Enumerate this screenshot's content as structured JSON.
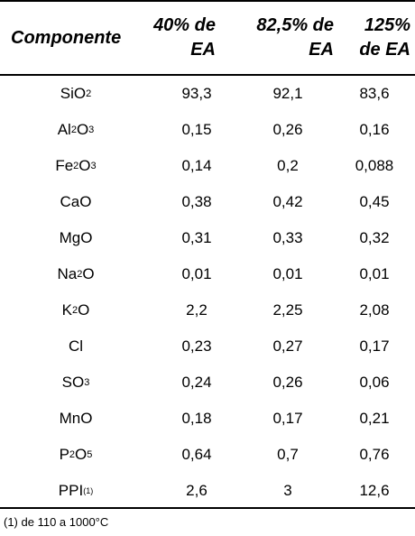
{
  "table": {
    "headers": [
      "Componente",
      "40% de\nEA",
      "82,5% de\nEA",
      "125%\nde EA"
    ],
    "rows": [
      {
        "component": [
          "Si",
          "O",
          "2"
        ],
        "values": [
          "93,3",
          "92,1",
          "83,6"
        ]
      },
      {
        "component": [
          "Al",
          "2",
          "O",
          "3"
        ],
        "values": [
          "0,15",
          "0,26",
          "0,16"
        ]
      },
      {
        "component": [
          "Fe",
          "2",
          "O",
          "3"
        ],
        "values": [
          "0,14",
          "0,2",
          "0,088"
        ]
      },
      {
        "component": [
          "CaO"
        ],
        "values": [
          "0,38",
          "0,42",
          "0,45"
        ]
      },
      {
        "component": [
          "MgO"
        ],
        "values": [
          "0,31",
          "0,33",
          "0,32"
        ]
      },
      {
        "component": [
          "Na",
          "2",
          "O"
        ],
        "values": [
          "0,01",
          "0,01",
          "0,01"
        ]
      },
      {
        "component": [
          "K",
          "2",
          "O"
        ],
        "values": [
          "2,2",
          "2,25",
          "2,08"
        ]
      },
      {
        "component": [
          "Cl"
        ],
        "values": [
          "0,23",
          "0,27",
          "0,17"
        ]
      },
      {
        "component": [
          "SO",
          "3"
        ],
        "values": [
          "0,24",
          "0,26",
          "0,06"
        ]
      },
      {
        "component": [
          "MnO"
        ],
        "values": [
          "0,18",
          "0,17",
          "0,21"
        ]
      },
      {
        "component": [
          "P",
          "2",
          "O",
          "5"
        ],
        "values": [
          "0,64",
          "0,7",
          "0,76"
        ]
      },
      {
        "component": [
          "PPI ",
          "(1)"
        ],
        "values": [
          "2,6",
          "3",
          "12,6"
        ]
      }
    ]
  },
  "footnote": "(1) de 110 a 1000°C"
}
